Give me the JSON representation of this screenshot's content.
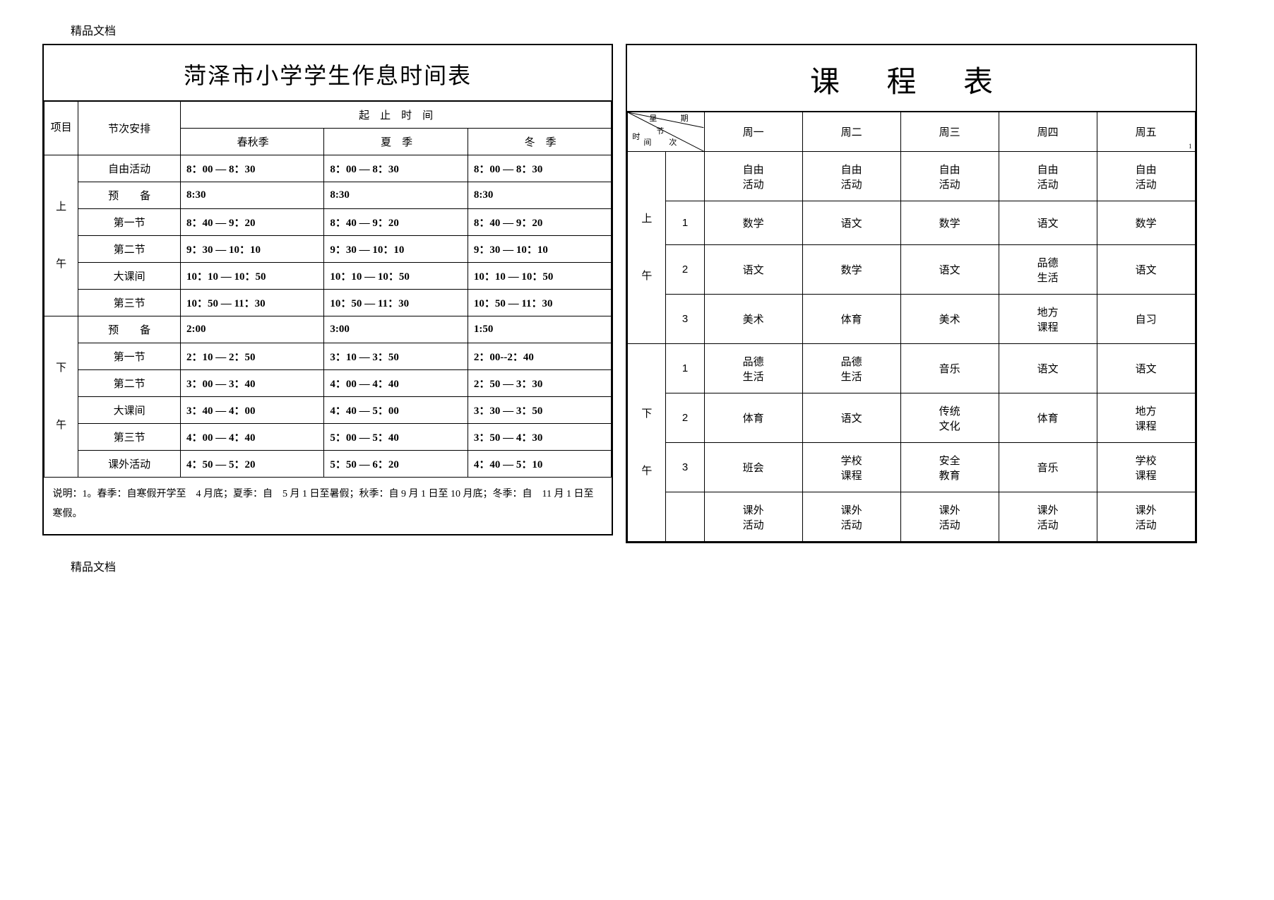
{
  "doc_label": "精品文档",
  "left": {
    "title": "菏泽市小学学生作息时间表",
    "header": {
      "item": "项目",
      "arrangement": "节次安排",
      "span": "起　止　时　间",
      "seasons": [
        "春秋季",
        "夏　季",
        "冬　季"
      ]
    },
    "morning_label": "上",
    "morning_label2": "午",
    "afternoon_label": "下",
    "afternoon_label2": "午",
    "morning_rows": [
      {
        "period": "自由活动",
        "cells": [
          "8：00 — 8：30",
          "8：00 — 8：30",
          "8：00 — 8：30"
        ],
        "bold": true
      },
      {
        "period": "预　　备",
        "cells": [
          "8:30",
          "8:30",
          "8:30"
        ],
        "bold": true
      },
      {
        "period": "第一节",
        "cells": [
          "8：40 — 9：20",
          "8：40 — 9：20",
          "8：40 — 9：20"
        ],
        "bold": true
      },
      {
        "period": "第二节",
        "cells": [
          "9：30 — 10：10",
          "9：30 — 10：10",
          "9：30 — 10：10"
        ],
        "bold": true
      },
      {
        "period": "大课间",
        "cells": [
          "10：10 — 10：50",
          "10：10 — 10：50",
          "10：10 — 10：50"
        ],
        "bold": true
      },
      {
        "period": "第三节",
        "cells": [
          "10：50 — 11：30",
          "10：50 — 11：30",
          "10：50 — 11：30"
        ],
        "bold": true
      }
    ],
    "afternoon_rows": [
      {
        "period": "预　　备",
        "cells": [
          "2:00",
          "3:00",
          "1:50"
        ],
        "bold": true
      },
      {
        "period": "第一节",
        "cells": [
          "2：10 — 2：50",
          "3：10 — 3：50",
          "2：00--2：40"
        ],
        "bold": true
      },
      {
        "period": "第二节",
        "cells": [
          "3：00 — 3：40",
          "4：00 — 4：40",
          "2：50 — 3：30"
        ],
        "bold": true
      },
      {
        "period": "大课间",
        "cells": [
          "3：40 — 4：00",
          "4：40 — 5：00",
          "3：30 — 3：50"
        ],
        "bold": true
      },
      {
        "period": "第三节",
        "cells": [
          "4：00 — 4：40",
          "5：00 — 5：40",
          "3：50 — 4：30"
        ],
        "bold": true
      },
      {
        "period": "课外活动",
        "cells": [
          "4：50 — 5：20",
          "5：50 — 6：20",
          "4：40 — 5：10"
        ],
        "bold": true
      }
    ],
    "note": "说明：1。春季：自寒假开学至　4 月底；夏季：自　5 月 1 日至暑假；秋季：自 9 月 1 日至 10 月底；冬季：自　11 月 1 日至寒假。"
  },
  "right": {
    "title": "课 程 表",
    "diag": {
      "week": "星期",
      "time": "时间",
      "period": "节次"
    },
    "days": [
      "周一",
      "周二",
      "周三",
      "周四",
      "周五"
    ],
    "tiny_one": "1",
    "morning_label": "上",
    "morning_label2": "午",
    "afternoon_label": "下",
    "afternoon_label2": "午",
    "m_rows": [
      {
        "num": "",
        "cells": [
          "自由活动",
          "自由活动",
          "自由活动",
          "自由活动",
          "自由活动"
        ]
      },
      {
        "num": "1",
        "cells": [
          "数学",
          "语文",
          "数学",
          "语文",
          "数学"
        ]
      },
      {
        "num": "2",
        "cells": [
          "语文",
          "数学",
          "语文",
          "品德生活",
          "语文"
        ]
      },
      {
        "num": "3",
        "cells": [
          "美术",
          "体育",
          "美术",
          "地方课程",
          "自习"
        ]
      }
    ],
    "a_rows": [
      {
        "num": "1",
        "cells": [
          "品德生活",
          "品德生活",
          "音乐",
          "语文",
          "语文"
        ]
      },
      {
        "num": "2",
        "cells": [
          "体育",
          "语文",
          "传统文化",
          "体育",
          "地方课程"
        ]
      },
      {
        "num": "3",
        "cells": [
          "班会",
          "学校课程",
          "安全教育",
          "音乐",
          "学校课程"
        ]
      },
      {
        "num": "",
        "cells": [
          "课外活动",
          "课外活动",
          "课外活动",
          "课外活动",
          "课外活动"
        ]
      }
    ]
  }
}
